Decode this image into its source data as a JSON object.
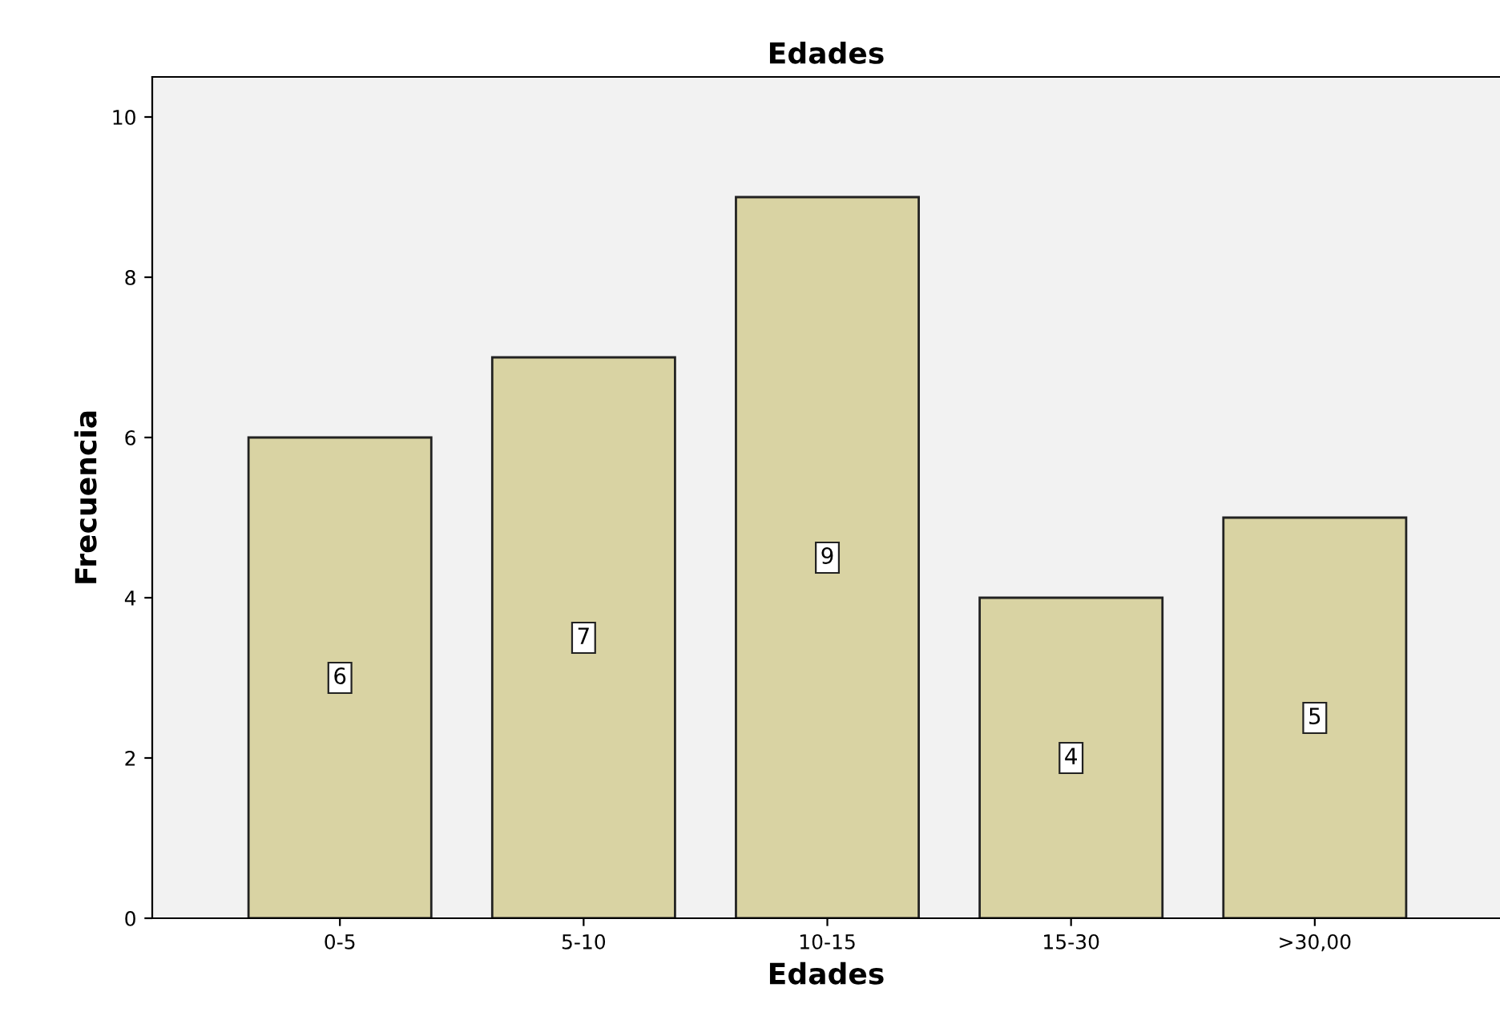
{
  "chart_data": {
    "type": "bar",
    "title": "Edades",
    "xlabel": "Edades",
    "ylabel": "Frecuencia",
    "categories": [
      "0-5",
      "5-10",
      "10-15",
      "15-30",
      ">30,00"
    ],
    "values": [
      6,
      7,
      9,
      4,
      5
    ],
    "color": "#d9d3a3",
    "ylim": [
      0,
      10.5
    ],
    "yticks": [
      0,
      2,
      4,
      6,
      8,
      10
    ],
    "grid": false,
    "data_labels": true
  }
}
